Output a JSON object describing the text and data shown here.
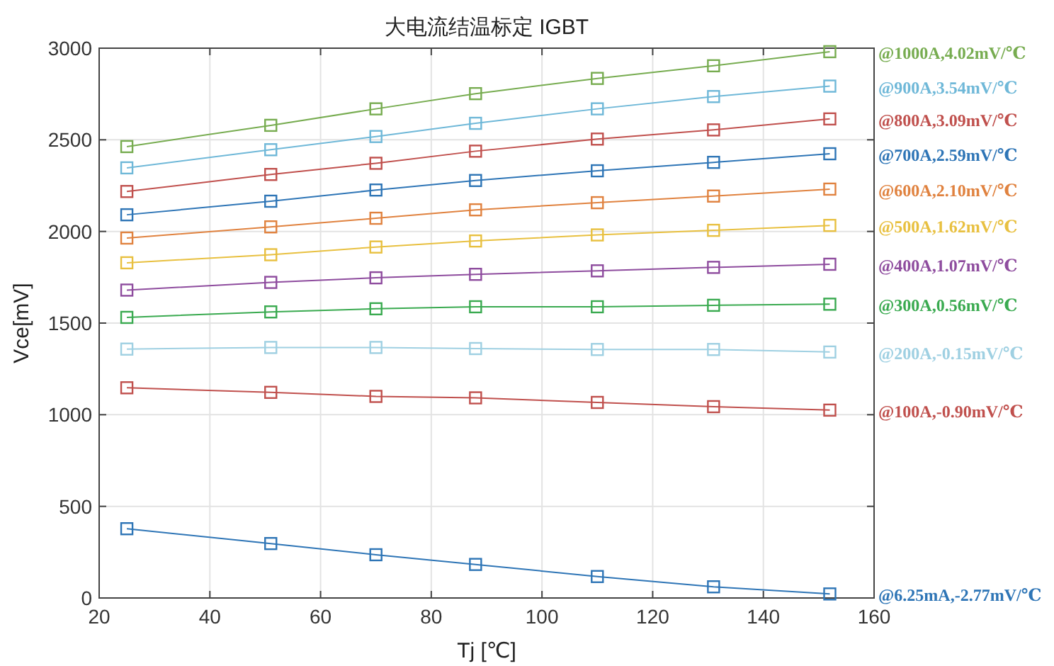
{
  "chart_data": {
    "type": "line",
    "title": "大电流结温标定 IGBT",
    "xlabel": "Tj [℃]",
    "ylabel": "Vce[mV]",
    "x": [
      25,
      51,
      70,
      88,
      110,
      131,
      152
    ],
    "xlim": [
      20,
      160
    ],
    "xticks": [
      20,
      40,
      60,
      80,
      100,
      120,
      140,
      160
    ],
    "ylim": [
      0,
      3000
    ],
    "yticks": [
      0,
      500,
      1000,
      1500,
      2000,
      2500,
      3000
    ],
    "grid": true,
    "marker": "square",
    "line_style": "solid",
    "series": [
      {
        "name": "@1000A,4.02mV/℃",
        "color": "#77ac50",
        "values": [
          2463,
          2579,
          2669,
          2752,
          2835,
          2904,
          2981
        ]
      },
      {
        "name": "@900A,3.54mV/℃",
        "color": "#6fb8d8",
        "values": [
          2347,
          2446,
          2518,
          2590,
          2669,
          2736,
          2793
        ]
      },
      {
        "name": "@800A,3.09mV/℃",
        "color": "#c0504d",
        "values": [
          2218,
          2311,
          2372,
          2438,
          2504,
          2554,
          2614
        ]
      },
      {
        "name": "@700A,2.59mV/℃",
        "color": "#2e75b6",
        "values": [
          2091,
          2165,
          2226,
          2278,
          2331,
          2377,
          2424
        ]
      },
      {
        "name": "@600A,2.10mV/℃",
        "color": "#e0823f",
        "values": [
          1964,
          2025,
          2072,
          2118,
          2157,
          2193,
          2231
        ]
      },
      {
        "name": "@500A,1.62mV/℃",
        "color": "#e8c040",
        "values": [
          1829,
          1873,
          1915,
          1948,
          1981,
          2006,
          2033
        ]
      },
      {
        "name": "@400A,1.07mV/℃",
        "color": "#8e4c9e",
        "values": [
          1680,
          1722,
          1747,
          1766,
          1785,
          1804,
          1821
        ]
      },
      {
        "name": "@300A,0.56mV/℃",
        "color": "#3aaa50",
        "values": [
          1531,
          1561,
          1578,
          1589,
          1589,
          1597,
          1603
        ]
      },
      {
        "name": "@200A,-0.15mV/℃",
        "color": "#9fd0e2",
        "values": [
          1358,
          1367,
          1367,
          1361,
          1356,
          1356,
          1342
        ]
      },
      {
        "name": "@100A,-0.90mV/℃",
        "color": "#c0504d",
        "values": [
          1147,
          1122,
          1100,
          1092,
          1067,
          1044,
          1025
        ]
      },
      {
        "name": "@6.25mA,-2.77mV/℃",
        "color": "#2e75b6",
        "values": [
          378,
          297,
          236,
          183,
          117,
          61,
          22
        ]
      }
    ]
  }
}
